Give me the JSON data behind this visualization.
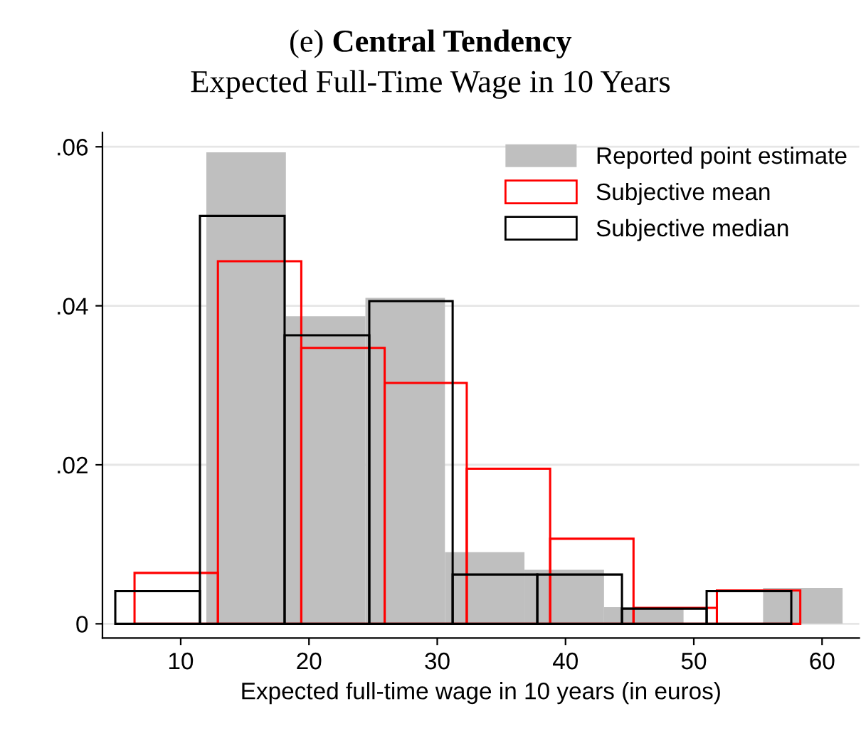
{
  "chart_data": {
    "type": "histogram",
    "title": "(e) Central Tendency",
    "subtitle": "Expected Full-Time Wage in 10 Years",
    "xlabel": "Expected full-time wage in 10 years (in euros)",
    "bins": [
      12,
      18.2,
      24.4,
      30.6,
      36.8,
      43,
      49.2,
      55.4,
      61.6
    ],
    "series": [
      {
        "name": "Reported point estimate",
        "color": "#bfbfbf",
        "values": [
          0.0593,
          0.0387,
          0.041,
          0.009,
          0.0068,
          0.0021,
          0,
          0.0045
        ]
      },
      {
        "name": "Subjective mean",
        "color": "#ff0000",
        "bins": [
          6.4,
          12.9,
          19.4,
          25.9,
          32.3,
          38.8,
          45.3,
          51.8,
          58.3
        ],
        "values": [
          0.0064,
          0.0456,
          0.0347,
          0.0303,
          0.0195,
          0.0107,
          0.002,
          0.0042
        ]
      },
      {
        "name": "Subjective median",
        "color": "#000000",
        "bins": [
          4.9,
          11.5,
          18.1,
          24.7,
          31.2,
          37.8,
          44.4,
          51,
          57.6
        ],
        "values": [
          0.0041,
          0.0513,
          0.0363,
          0.0406,
          0.0062,
          0.0062,
          0.0019,
          0.0041
        ]
      }
    ],
    "xlim": [
      3.9,
      62.9
    ],
    "xticks": [
      10,
      20,
      30,
      40,
      50,
      60
    ],
    "ylim": [
      -0.0018,
      0.0618
    ],
    "yticks": [
      0,
      {
        "value": 0.02,
        "label": ".02"
      },
      {
        "value": 0.04,
        "label": ".04"
      },
      {
        "value": 0.06,
        "label": ".06"
      }
    ],
    "grid": "y",
    "legend": "top right"
  }
}
